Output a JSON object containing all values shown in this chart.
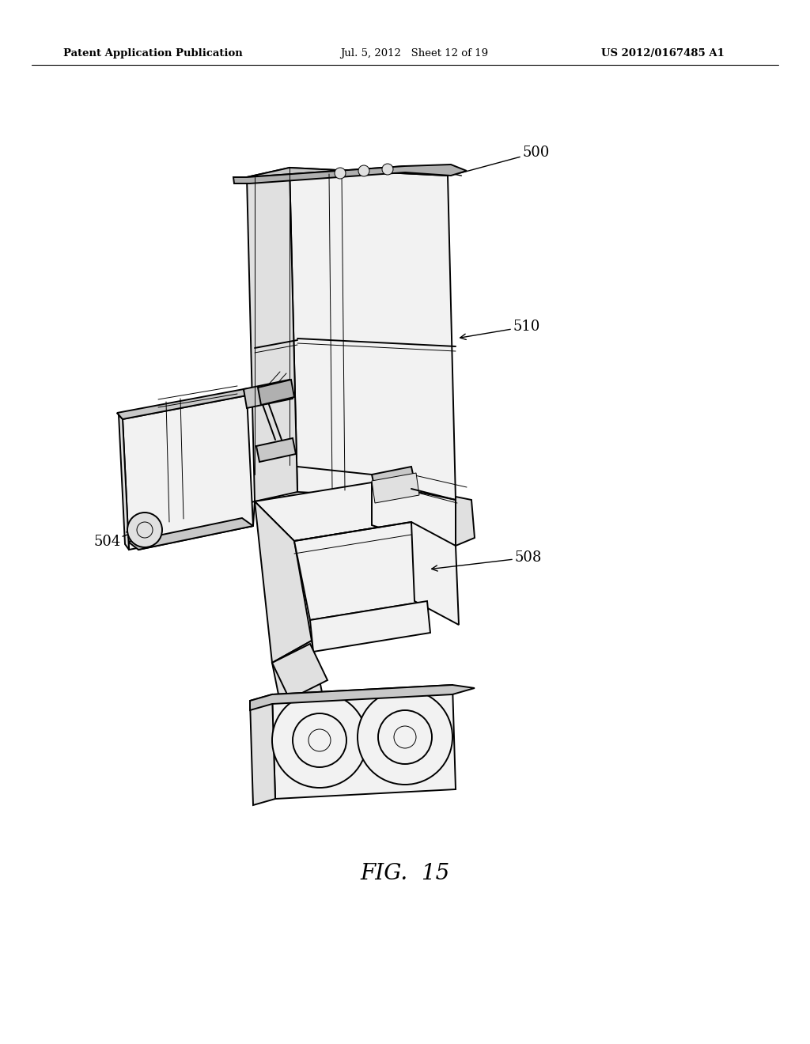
{
  "background_color": "#ffffff",
  "line_color": "#000000",
  "header_left": "Patent Application Publication",
  "header_mid": "Jul. 5, 2012   Sheet 12 of 19",
  "header_right": "US 2012/0167485 A1",
  "figure_label": "FIG.  15",
  "lw_main": 1.4,
  "lw_thin": 0.7,
  "lw_thick": 2.0,
  "gray_light": "#f2f2f2",
  "gray_mid": "#e0e0e0",
  "gray_dark": "#c8c8c8",
  "gray_darker": "#b0b0b0"
}
